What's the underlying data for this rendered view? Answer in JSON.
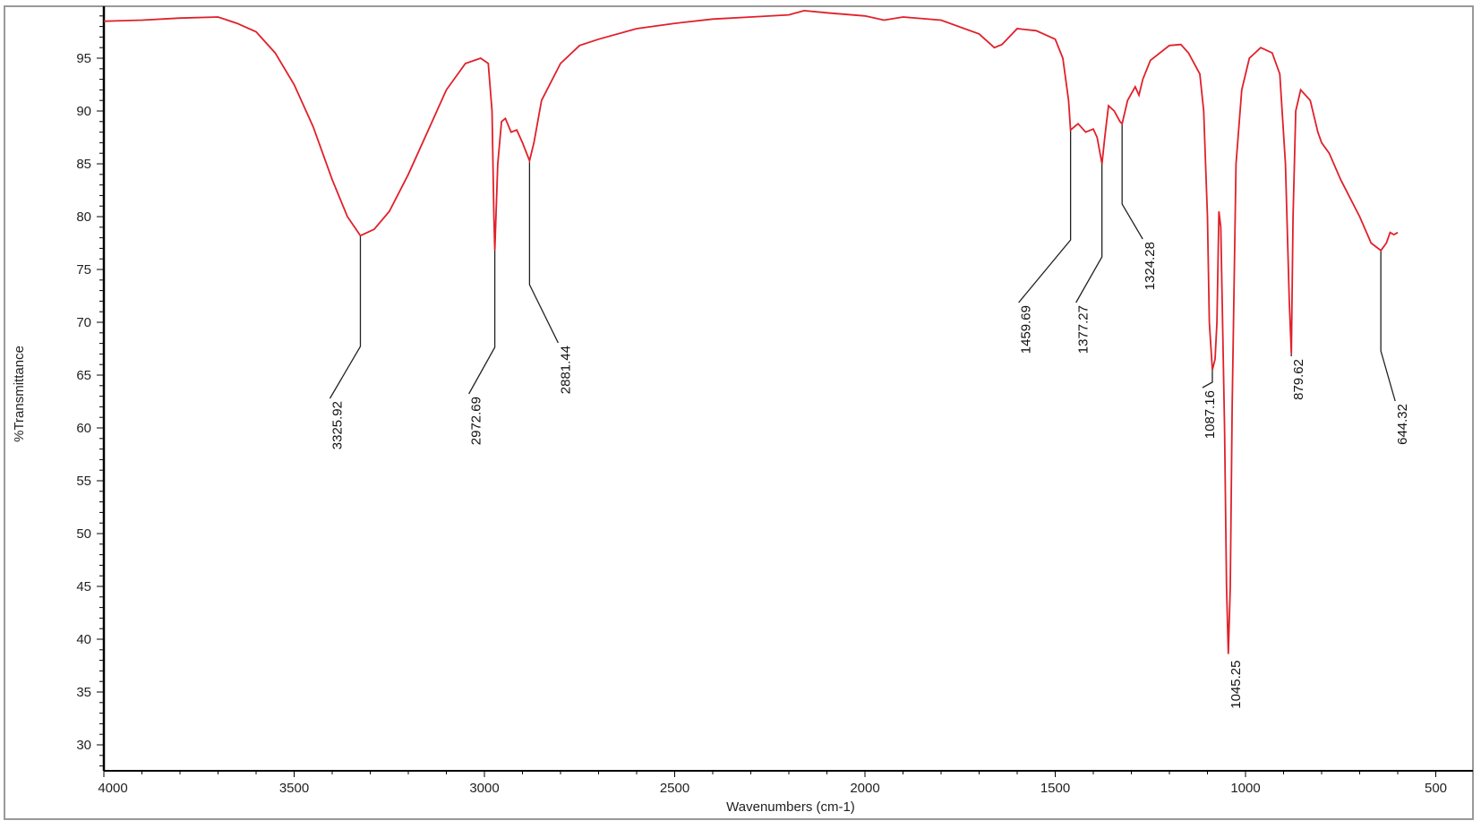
{
  "chart_data": {
    "type": "line",
    "title": "",
    "xlabel": "Wavenumbers (cm-1)",
    "ylabel": "%Transmittance",
    "xlim": [
      4000,
      500
    ],
    "ylim": [
      27.5,
      100
    ],
    "x_reversed": true,
    "grid": false,
    "line_color": "#e0202a",
    "x_ticks": [
      4000,
      3500,
      3000,
      2500,
      2000,
      1500,
      1000,
      500
    ],
    "y_ticks": [
      30,
      35,
      40,
      45,
      50,
      55,
      60,
      65,
      70,
      75,
      80,
      85,
      90,
      95
    ],
    "series": [
      {
        "name": "%Transmittance",
        "x": [
          4000,
          3900,
          3800,
          3700,
          3650,
          3600,
          3550,
          3500,
          3450,
          3400,
          3360,
          3325.92,
          3290,
          3250,
          3200,
          3150,
          3100,
          3050,
          3010,
          2990,
          2980,
          2975,
          2972.69,
          2965,
          2955,
          2945,
          2930,
          2915,
          2900,
          2881.44,
          2870,
          2850,
          2800,
          2750,
          2700,
          2600,
          2500,
          2400,
          2300,
          2200,
          2160,
          2100,
          2000,
          1950,
          1900,
          1800,
          1700,
          1660,
          1640,
          1600,
          1550,
          1500,
          1480,
          1465,
          1459.69,
          1450,
          1440,
          1420,
          1400,
          1390,
          1377.27,
          1370,
          1360,
          1345,
          1330,
          1324.28,
          1310,
          1290,
          1280,
          1270,
          1250,
          1200,
          1170,
          1150,
          1120,
          1110,
          1100,
          1095,
          1087.16,
          1080,
          1075,
          1070,
          1065,
          1055,
          1050,
          1045.25,
          1040,
          1035,
          1025,
          1010,
          990,
          960,
          930,
          910,
          895,
          885,
          879.62,
          875,
          868,
          855,
          830,
          810,
          800,
          780,
          750,
          700,
          670,
          644.32,
          630,
          620,
          610,
          600
        ],
        "y": [
          98.5,
          98.6,
          98.8,
          98.9,
          98.3,
          97.5,
          95.5,
          92.5,
          88.5,
          83.5,
          80,
          78.2,
          78.8,
          80.5,
          84,
          88,
          92,
          94.5,
          95,
          94.5,
          90,
          80,
          76.8,
          85,
          89,
          89.3,
          88,
          88.2,
          87,
          85.3,
          87,
          91,
          94.5,
          96.2,
          96.8,
          97.8,
          98.3,
          98.7,
          98.9,
          99.1,
          99.5,
          99.3,
          99,
          98.6,
          98.9,
          98.6,
          97.3,
          96,
          96.3,
          97.8,
          97.6,
          96.8,
          95,
          91,
          88.2,
          88.5,
          88.8,
          88,
          88.3,
          87.5,
          85,
          87.5,
          90.5,
          90,
          89,
          88.8,
          91,
          92.3,
          91.5,
          93,
          94.8,
          96.2,
          96.3,
          95.5,
          93.5,
          90,
          80,
          70,
          65.5,
          66.5,
          70,
          80.5,
          79,
          60,
          45,
          38.6,
          45,
          62,
          85,
          92,
          95,
          96,
          95.5,
          93.5,
          85,
          72,
          67,
          80,
          90,
          92,
          91,
          88,
          87,
          86,
          83.5,
          80,
          77.5,
          76.8,
          77.5,
          78.5,
          78.3,
          78.5
        ]
      }
    ],
    "annotations": [
      {
        "label": "3325.92",
        "x": 3325.92,
        "y": 78.2
      },
      {
        "label": "2972.69",
        "x": 2972.69,
        "y": 76.8
      },
      {
        "label": "2881.44",
        "x": 2881.44,
        "y": 85.3
      },
      {
        "label": "1459.69",
        "x": 1459.69,
        "y": 88.2
      },
      {
        "label": "1377.27",
        "x": 1377.27,
        "y": 85
      },
      {
        "label": "1324.28",
        "x": 1324.28,
        "y": 88.8
      },
      {
        "label": "1087.16",
        "x": 1087.16,
        "y": 65.5
      },
      {
        "label": "1045.25",
        "x": 1045.25,
        "y": 38.6
      },
      {
        "label": "879.62",
        "x": 879.62,
        "y": 67
      },
      {
        "label": "644.32",
        "x": 644.32,
        "y": 76.8
      }
    ]
  }
}
